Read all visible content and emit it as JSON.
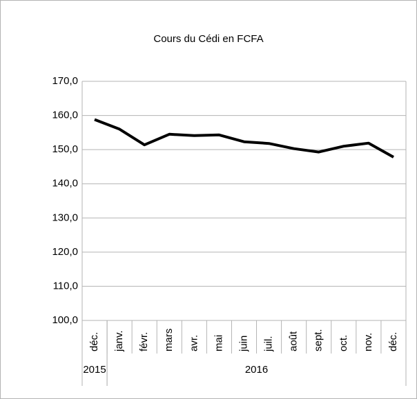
{
  "chart_data": {
    "type": "line",
    "title": "Cours du Cédi en FCFA",
    "categories": [
      "déc.",
      "janv.",
      "févr.",
      "mars",
      "avr.",
      "mai",
      "juin",
      "juil.",
      "août",
      "sept.",
      "oct.",
      "nov.",
      "déc."
    ],
    "category_groups": [
      {
        "label": "2015",
        "count": 1
      },
      {
        "label": "2016",
        "count": 12
      }
    ],
    "values": [
      158.8,
      156.0,
      151.4,
      154.5,
      154.1,
      154.3,
      152.3,
      151.8,
      150.3,
      149.3,
      151.0,
      151.9,
      147.8
    ],
    "color": "#000000",
    "ylim": [
      100,
      170
    ],
    "yticks": [
      {
        "value": 100,
        "label": "100,0"
      },
      {
        "value": 110,
        "label": "110,0"
      },
      {
        "value": 120,
        "label": "120,0"
      },
      {
        "value": 130,
        "label": "130,0"
      },
      {
        "value": 140,
        "label": "140,0"
      },
      {
        "value": 150,
        "label": "150,0"
      },
      {
        "value": 160,
        "label": "160,0"
      },
      {
        "value": 170,
        "label": "170,0"
      }
    ],
    "grid": true
  }
}
